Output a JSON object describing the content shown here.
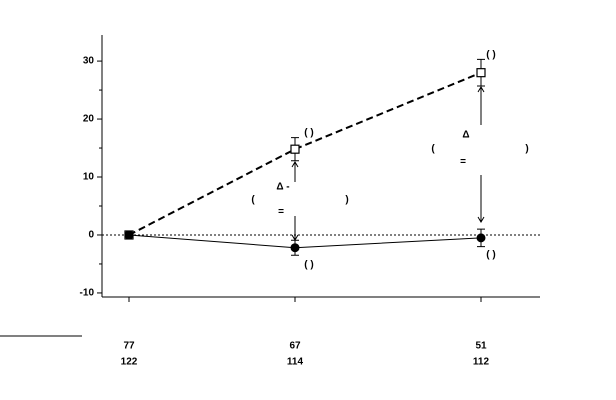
{
  "chart_data": {
    "type": "line",
    "categories": [
      null,
      null,
      null
    ],
    "series": [
      {
        "color": "#000000",
        "line_style": "dashed",
        "marker": "square",
        "values": [
          0,
          14.8,
          28
        ],
        "errors": [
          0,
          2,
          2.3
        ]
      },
      {
        "color": "#000000",
        "line_style": "solid",
        "marker": "circle",
        "values": [
          0,
          -2.2,
          -0.5
        ],
        "errors": [
          0,
          1.3,
          1.5
        ]
      }
    ],
    "ylim": [
      -10.7,
      34.5
    ],
    "yticks": [
      -10,
      0,
      10,
      20,
      30
    ],
    "y_minor_step": 5,
    "hline": 0,
    "annotations": [
      "( )",
      "( )",
      "( )",
      "( )",
      "Δ -",
      "(",
      ")",
      "=",
      "Δ",
      "(",
      ")",
      "="
    ],
    "n_rows": [
      [
        77,
        67,
        51
      ],
      [
        122,
        114,
        112
      ]
    ]
  }
}
